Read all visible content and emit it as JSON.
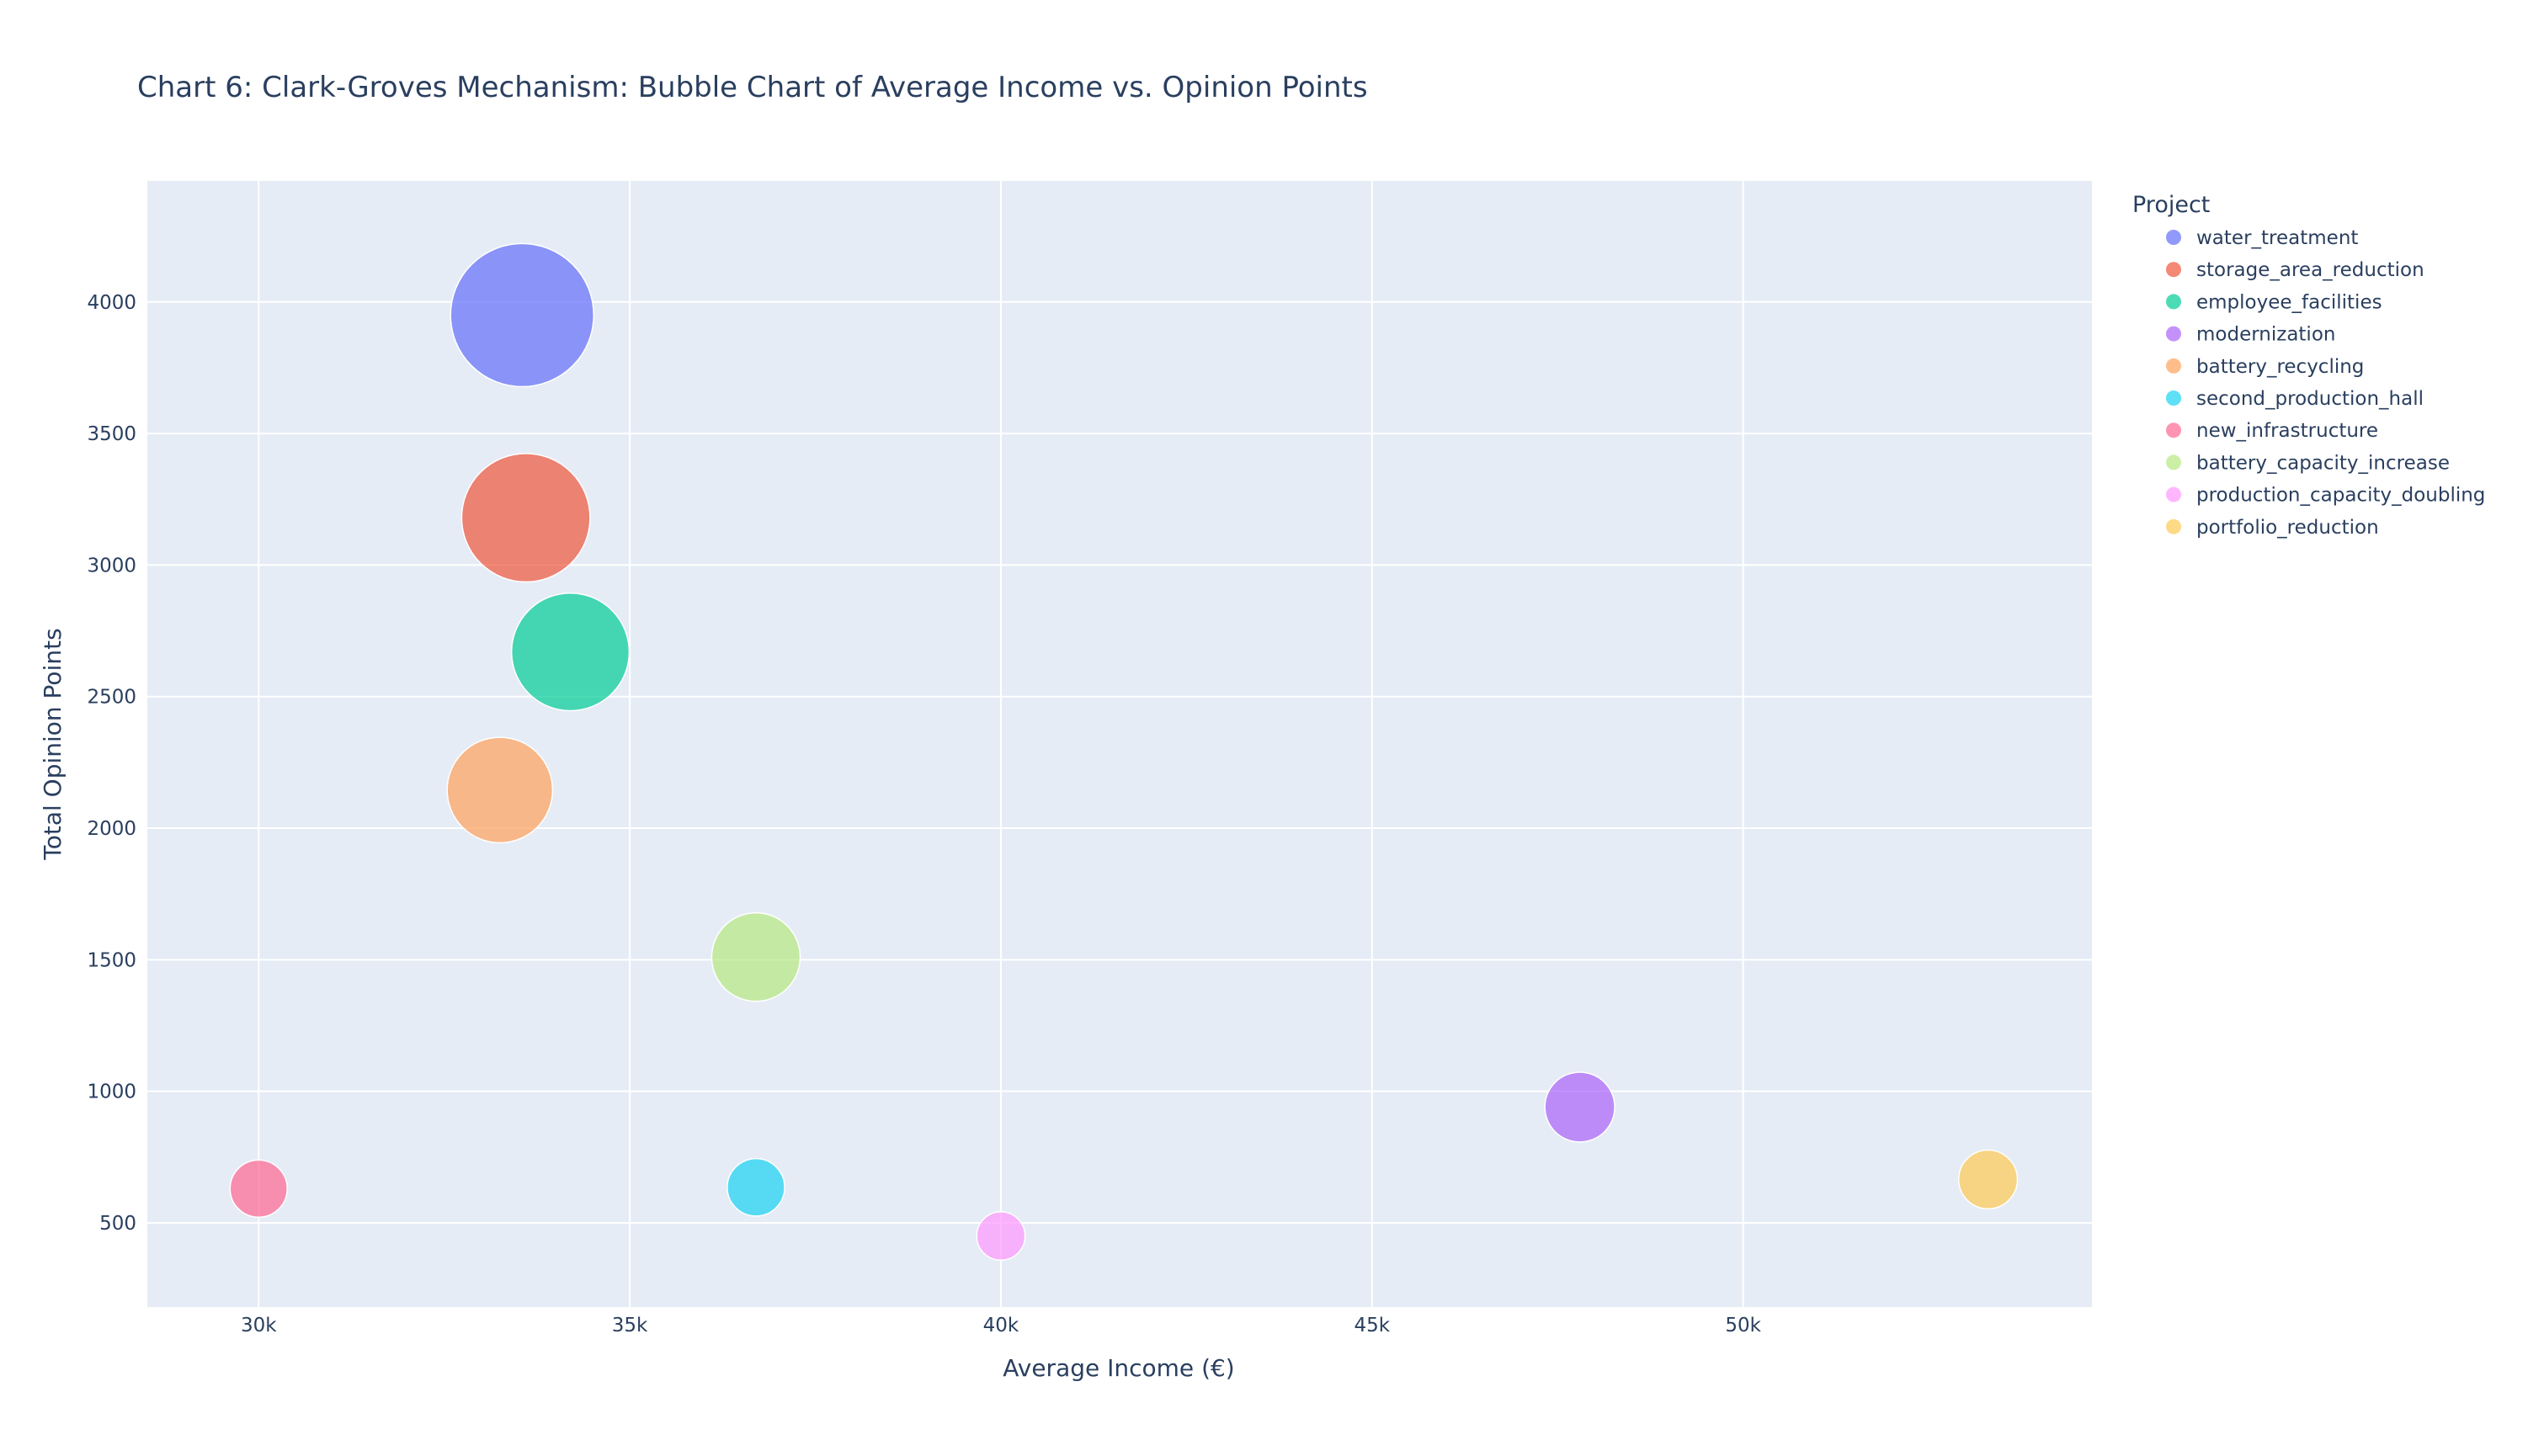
{
  "chart_data": {
    "type": "scatter",
    "title": "Chart 6: Clark-Groves Mechanism: Bubble Chart of Average Income vs. Opinion Points",
    "xlabel": "Average Income (€)",
    "ylabel": "Total Opinion Points",
    "xlim": [
      28500,
      54700
    ],
    "ylim": [
      180,
      4460
    ],
    "x_ticks": [
      30000,
      35000,
      40000,
      45000,
      50000
    ],
    "x_tick_labels": [
      "30k",
      "35k",
      "40k",
      "45k",
      "50k"
    ],
    "y_ticks": [
      500,
      1000,
      1500,
      2000,
      2500,
      3000,
      3500,
      4000
    ],
    "y_tick_labels": [
      "500",
      "1000",
      "1500",
      "2000",
      "2500",
      "3000",
      "3500",
      "4000"
    ],
    "grid": true,
    "legend_title": "Project",
    "legend_position": "right",
    "series": [
      {
        "name": "water_treatment",
        "color": "#636efa",
        "x": 33550,
        "y": 3950,
        "size": 3950
      },
      {
        "name": "storage_area_reduction",
        "color": "#EF553B",
        "x": 33600,
        "y": 3180,
        "size": 3180
      },
      {
        "name": "employee_facilities",
        "color": "#00cc96",
        "x": 34200,
        "y": 2670,
        "size": 2670
      },
      {
        "name": "modernization",
        "color": "#ab63fa",
        "x": 47800,
        "y": 940,
        "size": 940
      },
      {
        "name": "battery_recycling",
        "color": "#FFA15A",
        "x": 33250,
        "y": 2145,
        "size": 2145
      },
      {
        "name": "second_production_hall",
        "color": "#19d3f3",
        "x": 36700,
        "y": 635,
        "size": 635
      },
      {
        "name": "new_infrastructure",
        "color": "#FF6692",
        "x": 30000,
        "y": 630,
        "size": 630
      },
      {
        "name": "battery_capacity_increase",
        "color": "#B6E880",
        "x": 36700,
        "y": 1510,
        "size": 1510
      },
      {
        "name": "production_capacity_doubling",
        "color": "#FF97FF",
        "x": 40000,
        "y": 450,
        "size": 450
      },
      {
        "name": "portfolio_reduction",
        "color": "#FECB52",
        "x": 53300,
        "y": 665,
        "size": 665
      }
    ]
  },
  "colors": {
    "plot_background": "#e5ecf6",
    "grid": "#ffffff",
    "text": "#2a3f5f"
  }
}
